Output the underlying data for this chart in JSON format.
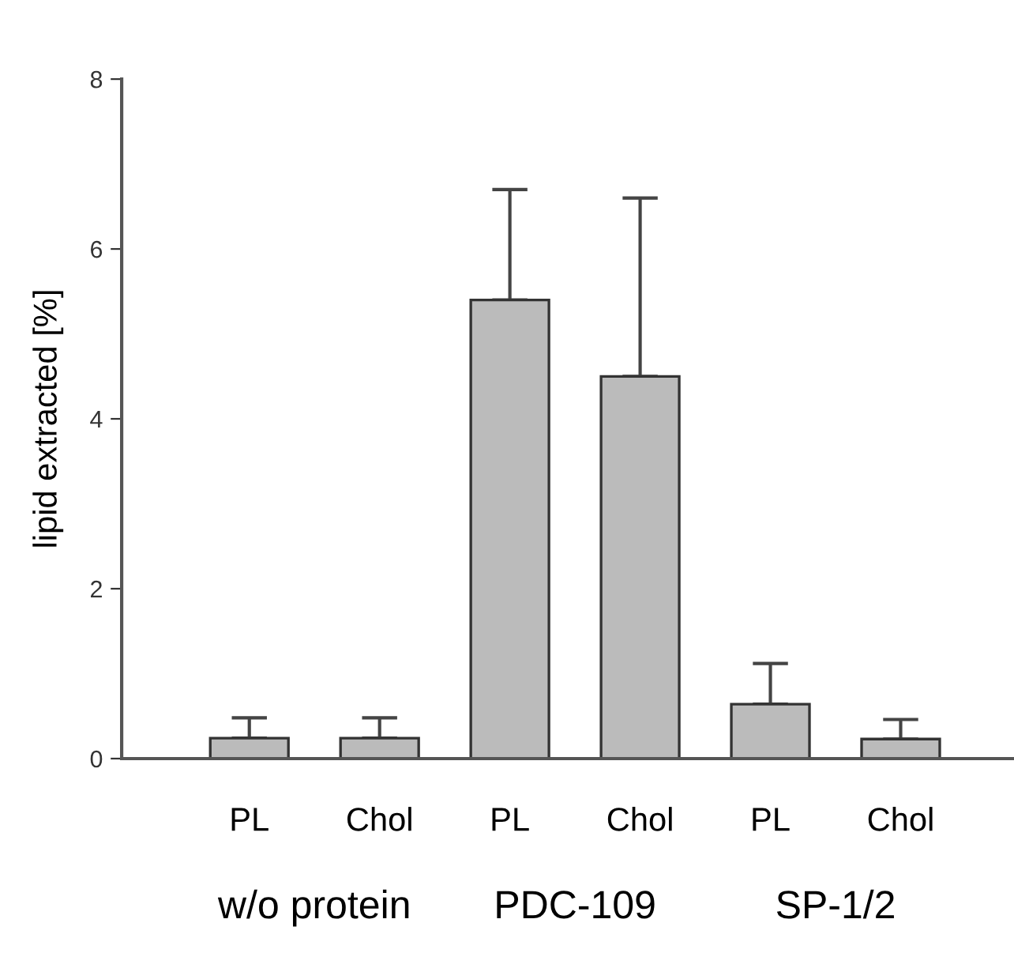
{
  "chart_data": {
    "type": "bar",
    "ylabel": "lipid extracted [%]",
    "categories": [
      "PL",
      "Chol",
      "PL",
      "Chol",
      "PL",
      "Chol"
    ],
    "values": [
      0.24,
      0.24,
      5.4,
      4.5,
      0.64,
      0.23
    ],
    "errors": [
      [
        0.24,
        0.48
      ],
      [
        0.24,
        0.48
      ],
      [
        5.4,
        6.7
      ],
      [
        4.5,
        6.6
      ],
      [
        0.64,
        1.12
      ],
      [
        0.23,
        0.46
      ]
    ],
    "color": "#bbbbbb",
    "ylim": [
      0,
      8
    ],
    "yticks": [
      0,
      2,
      4,
      6,
      8
    ],
    "annotations": [
      "w/o protein",
      "PDC-109",
      "SP-1/2"
    ],
    "grid": false
  }
}
